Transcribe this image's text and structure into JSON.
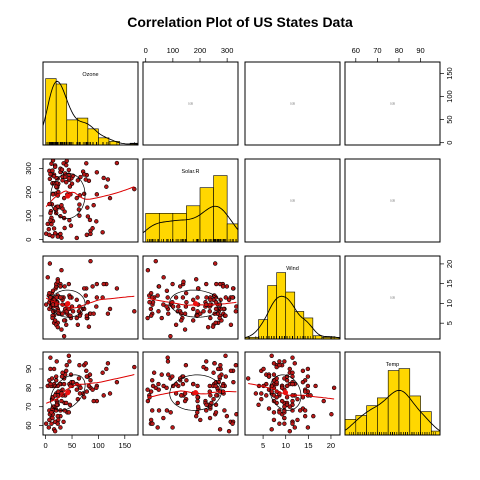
{
  "chart_data": {
    "type": "scatter",
    "title": "Correlation Plot of US States Data",
    "variables": [
      {
        "name": "Ozone",
        "range": [
          -5,
          175
        ],
        "ticks": [
          0,
          50,
          100,
          150
        ]
      },
      {
        "name": "Solar.R",
        "range": [
          -10,
          340
        ],
        "ticks": [
          0,
          100,
          200,
          300
        ]
      },
      {
        "name": "Wind",
        "range": [
          1,
          22
        ],
        "ticks": [
          5,
          10,
          15,
          20
        ]
      },
      {
        "name": "Temp",
        "range": [
          55,
          99
        ],
        "ticks": [
          60,
          70,
          80,
          90
        ]
      }
    ],
    "top_axis_ticks": {
      "panel_col_2": [
        0,
        100,
        200,
        300
      ],
      "panel_col_4": [
        60,
        70,
        80,
        90
      ]
    },
    "right_axis_ticks": {
      "panel_row_1": [
        0,
        50,
        100,
        150
      ],
      "panel_row_3": [
        5,
        10,
        15,
        20
      ]
    },
    "bottom_axis_ticks": {
      "panel_col_1": [
        0,
        50,
        100,
        150
      ],
      "panel_col_3": [
        5,
        10,
        15,
        20
      ]
    },
    "left_axis_ticks": {
      "panel_row_2": [
        0,
        100,
        200,
        300
      ],
      "panel_row_4": [
        60,
        70,
        80,
        90
      ]
    },
    "histograms": {
      "Ozone": {
        "breaks": [
          0,
          20,
          40,
          60,
          80,
          100,
          120,
          140,
          160,
          180
        ],
        "counts": [
          37,
          34,
          14,
          15,
          9,
          4,
          2,
          0,
          1
        ]
      },
      "Solar.R": {
        "breaks": [
          0,
          50,
          100,
          150,
          200,
          250,
          300,
          350
        ],
        "counts": [
          19,
          19,
          19,
          24,
          36,
          44,
          12
        ]
      },
      "Wind": {
        "breaks": [
          0,
          2,
          4,
          6,
          8,
          10,
          12,
          14,
          16,
          18,
          20,
          22
        ],
        "counts": [
          1,
          1,
          12,
          33,
          41,
          29,
          17,
          13,
          2,
          1,
          1
        ]
      },
      "Temp": {
        "breaks": [
          55,
          60,
          65,
          70,
          75,
          80,
          85,
          90,
          95,
          100
        ],
        "counts": [
          8,
          10,
          15,
          19,
          33,
          34,
          20,
          12,
          2
        ]
      }
    },
    "upper_panel_text": "0.35",
    "points_color": "#ee1111",
    "hist_color": "#ffd700",
    "loess_color": "#dd0000",
    "data": {
      "Ozone": [
        41,
        36,
        12,
        18,
        28,
        28,
        23,
        19,
        8,
        7,
        16,
        11,
        14,
        18,
        14,
        34,
        6,
        30,
        11,
        1,
        11,
        4,
        32,
        23,
        45,
        115,
        37,
        29,
        71,
        39,
        23,
        21,
        37,
        20,
        12,
        13,
        135,
        49,
        32,
        64,
        40,
        77,
        97,
        97,
        85,
        10,
        27,
        7,
        48,
        35,
        61,
        79,
        63,
        16,
        80,
        108,
        20,
        52,
        82,
        50,
        64,
        59,
        39,
        9,
        16,
        78,
        35,
        66,
        122,
        89,
        110,
        44,
        28,
        65,
        22,
        59,
        23,
        31,
        44,
        21,
        9,
        45,
        168,
        73,
        76,
        118,
        84,
        85,
        96,
        78,
        73,
        91,
        47,
        32,
        20,
        23,
        21,
        24,
        44,
        21,
        28,
        9,
        13,
        46,
        18,
        13,
        24,
        16,
        13,
        23,
        36,
        7,
        14,
        30,
        14,
        18,
        20
      ],
      "Solar.R": [
        190,
        118,
        149,
        313,
        299,
        99,
        19,
        194,
        256,
        290,
        274,
        65,
        334,
        307,
        78,
        322,
        44,
        8,
        320,
        25,
        92,
        66,
        266,
        13,
        252,
        223,
        279,
        286,
        287,
        242,
        186,
        220,
        264,
        127,
        273,
        291,
        323,
        259,
        250,
        148,
        332,
        322,
        191,
        284,
        37,
        120,
        137,
        150,
        59,
        91,
        250,
        135,
        127,
        47,
        98,
        31,
        138,
        269,
        248,
        236,
        101,
        175,
        314,
        276,
        267,
        272,
        175,
        264,
        175,
        48,
        260,
        274,
        285,
        187,
        220,
        7,
        258,
        295,
        294,
        223,
        81,
        82,
        213,
        275,
        253,
        254,
        83,
        24,
        77,
        20,
        193,
        145,
        191,
        131,
        112,
        230,
        259,
        236,
        259,
        238,
        24,
        112,
        237,
        224,
        27,
        238,
        201,
        238,
        14,
        139,
        49,
        20,
        193,
        145,
        191,
        131,
        223
      ],
      "Wind": [
        7.4,
        8.0,
        12.6,
        11.5,
        14.3,
        14.9,
        8.6,
        13.8,
        20.1,
        8.6,
        6.9,
        9.7,
        9.2,
        10.9,
        13.2,
        11.5,
        12.0,
        18.4,
        11.5,
        9.7,
        9.7,
        16.6,
        9.7,
        12.0,
        12.0,
        14.9,
        5.7,
        7.4,
        8.6,
        9.7,
        16.1,
        9.2,
        8.6,
        14.3,
        9.7,
        6.9,
        13.8,
        11.5,
        10.9,
        9.2,
        8.0,
        13.8,
        11.5,
        14.9,
        20.7,
        9.2,
        11.5,
        10.3,
        6.3,
        1.7,
        4.6,
        6.3,
        8.0,
        8.0,
        10.3,
        11.5,
        14.9,
        8.0,
        4.1,
        9.2,
        9.2,
        10.9,
        4.6,
        10.9,
        5.1,
        6.3,
        5.7,
        7.4,
        8.6,
        14.3,
        14.9,
        14.9,
        14.3,
        6.9,
        10.3,
        6.3,
        5.1,
        11.5,
        6.9,
        9.7,
        11.5,
        8.6,
        8.0,
        8.6,
        12.0,
        7.4,
        7.4,
        7.4,
        9.2,
        6.9,
        13.8,
        7.4,
        6.9,
        7.4,
        4.6,
        4.0,
        10.3,
        8.0,
        8.6,
        11.5,
        11.5,
        11.5,
        9.7,
        11.5,
        10.3,
        6.3,
        7.4,
        10.9,
        10.3,
        15.5,
        14.3,
        12.6,
        9.7,
        3.4,
        8.0,
        5.7,
        9.7
      ],
      "Temp": [
        67,
        72,
        74,
        62,
        65,
        59,
        61,
        69,
        66,
        68,
        58,
        64,
        66,
        57,
        68,
        62,
        59,
        73,
        61,
        61,
        67,
        81,
        79,
        76,
        82,
        90,
        87,
        82,
        77,
        72,
        65,
        73,
        76,
        84,
        85,
        81,
        83,
        83,
        88,
        92,
        92,
        89,
        73,
        81,
        80,
        81,
        82,
        84,
        87,
        85,
        74,
        86,
        85,
        82,
        86,
        88,
        86,
        83,
        81,
        81,
        81,
        82,
        89,
        90,
        90,
        86,
        82,
        80,
        77,
        79,
        76,
        78,
        78,
        77,
        72,
        79,
        81,
        86,
        97,
        94,
        96,
        94,
        91,
        92,
        93,
        93,
        87,
        84,
        80,
        78,
        75,
        73,
        81,
        76,
        77,
        71,
        71,
        78,
        67,
        76,
        68,
        82,
        64,
        71,
        81,
        69,
        63,
        70,
        75,
        76,
        68,
        63,
        70,
        77,
        75,
        76,
        68
      ]
    }
  }
}
